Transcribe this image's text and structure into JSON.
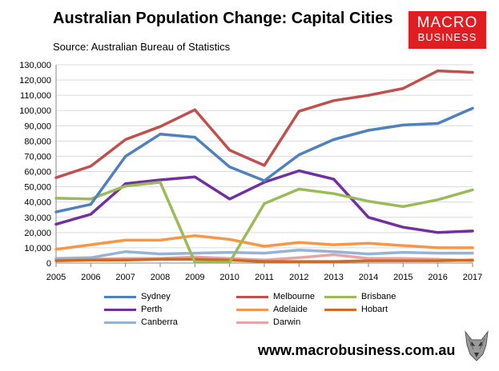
{
  "header": {
    "title": "Australian Population Change: Capital Cities",
    "subtitle": "Source: Australian Bureau of Statistics"
  },
  "logo": {
    "line1": "MACRO",
    "line2": "BUSINESS",
    "color": "#e01e22"
  },
  "footer": {
    "url": "www.macrobusiness.com.au"
  },
  "chart_data": {
    "type": "line",
    "title": "Australian Population Change: Capital Cities",
    "xlabel": "",
    "ylabel": "",
    "x": [
      "2005",
      "2006",
      "2007",
      "2008",
      "2009",
      "2010",
      "2011",
      "2012",
      "2013",
      "2014",
      "2015",
      "2016",
      "2017"
    ],
    "ylim": [
      0,
      130000
    ],
    "ytick_step": 10000,
    "grid": true,
    "legend_position": "bottom",
    "series": [
      {
        "name": "Sydney",
        "color": "#4f81bd",
        "values": [
          33500,
          38500,
          70000,
          84500,
          82500,
          63000,
          54000,
          71000,
          81000,
          87000,
          90500,
          91500,
          101500
        ]
      },
      {
        "name": "Melbourne",
        "color": "#c0504d",
        "values": [
          56000,
          63500,
          81000,
          89500,
          100500,
          74000,
          64000,
          99500,
          106500,
          110000,
          114500,
          126000,
          125000
        ]
      },
      {
        "name": "Brisbane",
        "color": "#9bbb59",
        "values": [
          42500,
          42000,
          50500,
          53000,
          500,
          500,
          39000,
          48500,
          45500,
          40500,
          37000,
          41500,
          48000
        ]
      },
      {
        "name": "Perth",
        "color": "#7030a0",
        "values": [
          25500,
          32000,
          52000,
          54500,
          56500,
          42000,
          53000,
          60500,
          55000,
          30000,
          23500,
          20000,
          21000
        ]
      },
      {
        "name": "Adelaide",
        "color": "#f79646",
        "values": [
          9000,
          12000,
          15000,
          15000,
          18000,
          15500,
          11000,
          13500,
          12000,
          13000,
          11500,
          10000,
          10000
        ]
      },
      {
        "name": "Hobart",
        "color": "#d2691e",
        "values": [
          1500,
          2000,
          2000,
          2500,
          2500,
          2000,
          1000,
          1000,
          1000,
          1500,
          1500,
          1500,
          2000
        ]
      },
      {
        "name": "Canberra",
        "color": "#95b3d7",
        "values": [
          3000,
          3500,
          7500,
          6000,
          6500,
          7000,
          6500,
          8500,
          7500,
          6000,
          7000,
          6500,
          6500
        ]
      },
      {
        "name": "Darwin",
        "color": "#e6a5a3",
        "values": [
          2500,
          2500,
          3000,
          3000,
          4000,
          3000,
          2000,
          3500,
          5500,
          3000,
          3000,
          2500,
          1500
        ]
      }
    ]
  }
}
